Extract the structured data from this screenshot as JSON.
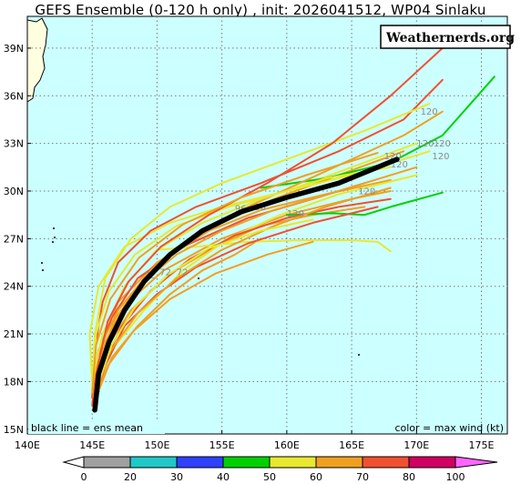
{
  "title": "GEFS Ensemble (0-120 h only) , init: 2026041512, WP04 Sinlaku",
  "brand": "Weathernerds.org",
  "legend_left": "black line = ens mean",
  "legend_right": "color = max wind (kt)",
  "colorbar": {
    "labels": [
      "0",
      "20",
      "30",
      "40",
      "50",
      "60",
      "70",
      "80",
      "100"
    ],
    "colors": [
      "#a0a0a0",
      "#20c8c8",
      "#3040ff",
      "#00d000",
      "#e8e830",
      "#f0a020",
      "#f05030",
      "#d00060",
      "#ff66ff"
    ]
  },
  "lat_labels": [
    "15N",
    "18N",
    "21N",
    "24N",
    "27N",
    "30N",
    "33N",
    "36N",
    "39N"
  ],
  "lon_labels": [
    "140E",
    "145E",
    "150E",
    "155E",
    "160E",
    "165E",
    "170E",
    "175E"
  ],
  "hour_labels": [
    "120",
    "120",
    "120",
    "120",
    "120",
    "120",
    "120",
    "120",
    "72",
    "72",
    "72",
    "96",
    "96"
  ],
  "chart_data": {
    "type": "map",
    "lon_range": [
      140,
      177
    ],
    "lat_range": [
      14.7,
      41
    ],
    "grid": true,
    "ensemble_mean": [
      [
        145.2,
        16.2
      ],
      [
        145.5,
        18.5
      ],
      [
        146.3,
        20.5
      ],
      [
        147.5,
        22.5
      ],
      [
        149,
        24.3
      ],
      [
        151,
        26
      ],
      [
        153.5,
        27.5
      ],
      [
        156.5,
        28.7
      ],
      [
        160,
        29.6
      ],
      [
        164,
        30.5
      ],
      [
        168.5,
        32
      ]
    ],
    "members": [
      {
        "wind": "orange",
        "pts": [
          [
            145,
            17
          ],
          [
            145.5,
            20
          ],
          [
            147,
            23
          ],
          [
            150,
            25.5
          ],
          [
            154,
            27.5
          ],
          [
            158,
            28.8
          ],
          [
            163,
            29.8
          ],
          [
            168,
            30.7
          ]
        ]
      },
      {
        "wind": "orange",
        "pts": [
          [
            145.1,
            17
          ],
          [
            145.8,
            20
          ],
          [
            147.5,
            22.8
          ],
          [
            150.5,
            25
          ],
          [
            155,
            27
          ],
          [
            160,
            28.5
          ],
          [
            165,
            29.5
          ],
          [
            168,
            30
          ]
        ]
      },
      {
        "wind": "red",
        "pts": [
          [
            145,
            16.5
          ],
          [
            145.4,
            19.5
          ],
          [
            146.5,
            22
          ],
          [
            148.5,
            24.5
          ],
          [
            152,
            26.5
          ],
          [
            157,
            28.3
          ],
          [
            162,
            29.5
          ],
          [
            166,
            30.5
          ]
        ]
      },
      {
        "wind": "orange",
        "pts": [
          [
            145.2,
            17
          ],
          [
            146,
            20.5
          ],
          [
            148,
            23.5
          ],
          [
            151,
            26
          ],
          [
            155,
            28
          ],
          [
            159,
            29.5
          ],
          [
            164,
            31
          ],
          [
            169,
            32.5
          ]
        ]
      },
      {
        "wind": "yellow",
        "pts": [
          [
            145,
            18
          ],
          [
            144.8,
            21
          ],
          [
            145.5,
            24
          ],
          [
            147.5,
            26.5
          ],
          [
            151,
            28
          ],
          [
            155,
            29
          ],
          [
            160,
            30
          ],
          [
            165,
            31.5
          ],
          [
            170,
            33
          ]
        ]
      },
      {
        "wind": "orange",
        "pts": [
          [
            145.3,
            17
          ],
          [
            146.5,
            19.5
          ],
          [
            148.5,
            21.5
          ],
          [
            151,
            23.5
          ],
          [
            153.5,
            25
          ],
          [
            156,
            26
          ],
          [
            158,
            27
          ]
        ]
      },
      {
        "wind": "red",
        "pts": [
          [
            145,
            17
          ],
          [
            145.2,
            20
          ],
          [
            145.8,
            23
          ],
          [
            147,
            25.5
          ],
          [
            149.5,
            27.5
          ],
          [
            153,
            29
          ],
          [
            158,
            30.5
          ],
          [
            164,
            32.5
          ],
          [
            169,
            34.5
          ],
          [
            172,
            37
          ]
        ]
      },
      {
        "wind": "orange",
        "pts": [
          [
            145.2,
            17
          ],
          [
            146,
            20
          ],
          [
            148,
            22.5
          ],
          [
            151,
            24.8
          ],
          [
            154.5,
            26.5
          ],
          [
            158,
            27.8
          ],
          [
            162,
            28.5
          ],
          [
            166,
            29
          ]
        ]
      },
      {
        "wind": "yellow",
        "pts": [
          [
            145.2,
            17.5
          ],
          [
            146.5,
            20
          ],
          [
            149,
            22.5
          ],
          [
            152,
            25
          ],
          [
            155.5,
            27
          ],
          [
            159.5,
            28.5
          ],
          [
            164,
            29.8
          ],
          [
            170,
            31
          ]
        ]
      },
      {
        "wind": "yellow",
        "pts": [
          [
            150,
            26.3
          ],
          [
            153,
            26.5
          ],
          [
            157,
            26.8
          ],
          [
            161,
            26.9
          ],
          [
            165,
            26.9
          ],
          [
            167,
            26.8
          ],
          [
            168,
            26.2
          ]
        ]
      },
      {
        "wind": "green",
        "pts": [
          [
            160,
            28.5
          ],
          [
            163.5,
            28.6
          ],
          [
            166,
            28.5
          ],
          [
            168,
            29
          ],
          [
            172,
            29.9
          ]
        ]
      },
      {
        "wind": "green",
        "pts": [
          [
            158,
            30.2
          ],
          [
            163,
            30.8
          ],
          [
            168,
            31.8
          ],
          [
            172,
            33.5
          ],
          [
            176,
            37.2
          ]
        ]
      },
      {
        "wind": "orange",
        "pts": [
          [
            145,
            17.5
          ],
          [
            145.5,
            20
          ],
          [
            147,
            22.5
          ],
          [
            149.5,
            25
          ],
          [
            153,
            27.3
          ],
          [
            157,
            29
          ],
          [
            161,
            30.5
          ],
          [
            165,
            32
          ],
          [
            169,
            33.5
          ],
          [
            172,
            35
          ]
        ]
      },
      {
        "wind": "red",
        "pts": [
          [
            145.3,
            17
          ],
          [
            146,
            19
          ],
          [
            147.5,
            21.5
          ],
          [
            150,
            23.5
          ],
          [
            153,
            25.2
          ],
          [
            157,
            26.7
          ],
          [
            162,
            28
          ],
          [
            167,
            29
          ]
        ]
      },
      {
        "wind": "yellow",
        "pts": [
          [
            145,
            18
          ],
          [
            145.8,
            21
          ],
          [
            147.5,
            24
          ],
          [
            150,
            26.3
          ],
          [
            153.5,
            28
          ],
          [
            158,
            29.5
          ],
          [
            163,
            30.8
          ],
          [
            168,
            31.5
          ]
        ]
      },
      {
        "wind": "orange",
        "pts": [
          [
            145.1,
            17
          ],
          [
            145.6,
            19.5
          ],
          [
            146.8,
            22
          ],
          [
            148.8,
            24.2
          ],
          [
            151.5,
            26
          ],
          [
            155,
            27.5
          ],
          [
            159,
            28.8
          ],
          [
            164,
            30
          ],
          [
            170,
            31.5
          ]
        ]
      },
      {
        "wind": "orange",
        "pts": [
          [
            145.2,
            16.8
          ],
          [
            146.2,
            19
          ],
          [
            148.2,
            21.2
          ],
          [
            151,
            23.2
          ],
          [
            154.5,
            24.8
          ],
          [
            158.5,
            26
          ],
          [
            162,
            26.8
          ]
        ]
      },
      {
        "wind": "yellow",
        "pts": [
          [
            145,
            17.5
          ],
          [
            145.2,
            21
          ],
          [
            146,
            24.5
          ],
          [
            148,
            27
          ],
          [
            151,
            29
          ],
          [
            155,
            30.5
          ],
          [
            160,
            32
          ],
          [
            166,
            33.8
          ],
          [
            171,
            35.5
          ]
        ]
      },
      {
        "wind": "red",
        "pts": [
          [
            145.1,
            16.5
          ],
          [
            145.8,
            19
          ],
          [
            147.3,
            21.5
          ],
          [
            149.5,
            23.7
          ],
          [
            152.5,
            25.7
          ],
          [
            156,
            27.2
          ],
          [
            160,
            28.3
          ],
          [
            164,
            29
          ],
          [
            168,
            29.5
          ]
        ]
      },
      {
        "wind": "orange",
        "pts": [
          [
            145.2,
            17
          ],
          [
            146.3,
            19.8
          ],
          [
            148.5,
            22.3
          ],
          [
            151.5,
            24.5
          ],
          [
            155,
            26.3
          ],
          [
            159,
            27.8
          ],
          [
            163,
            29
          ],
          [
            168,
            30.2
          ]
        ]
      },
      {
        "wind": "yellow",
        "pts": [
          [
            145,
            18
          ],
          [
            145.3,
            21
          ],
          [
            146.3,
            23.7
          ],
          [
            148.3,
            26
          ],
          [
            151.5,
            27.8
          ],
          [
            155.5,
            29
          ],
          [
            160,
            30
          ],
          [
            165,
            31
          ],
          [
            171,
            32.5
          ]
        ]
      },
      {
        "wind": "red",
        "pts": [
          [
            145.1,
            16.7
          ],
          [
            145.5,
            19.2
          ],
          [
            146.2,
            21.8
          ],
          [
            147.8,
            24.3
          ],
          [
            150.3,
            26.5
          ],
          [
            154,
            28.5
          ],
          [
            158.5,
            30.5
          ],
          [
            163.5,
            33
          ],
          [
            168,
            36
          ],
          [
            172,
            39
          ]
        ]
      },
      {
        "wind": "yellow",
        "pts": [
          [
            145.3,
            17.5
          ],
          [
            146.5,
            20.3
          ],
          [
            148.3,
            22.7
          ],
          [
            150.8,
            24.7
          ],
          [
            154,
            26.4
          ],
          [
            158,
            27.5
          ],
          [
            162,
            28.2
          ]
        ]
      },
      {
        "wind": "orange",
        "pts": [
          [
            145,
            17.3
          ],
          [
            145.3,
            20.3
          ],
          [
            146.4,
            23.2
          ],
          [
            148.6,
            25.8
          ],
          [
            152,
            27.9
          ],
          [
            156.5,
            29.6
          ],
          [
            161.5,
            31
          ],
          [
            167,
            32.4
          ]
        ]
      }
    ]
  }
}
